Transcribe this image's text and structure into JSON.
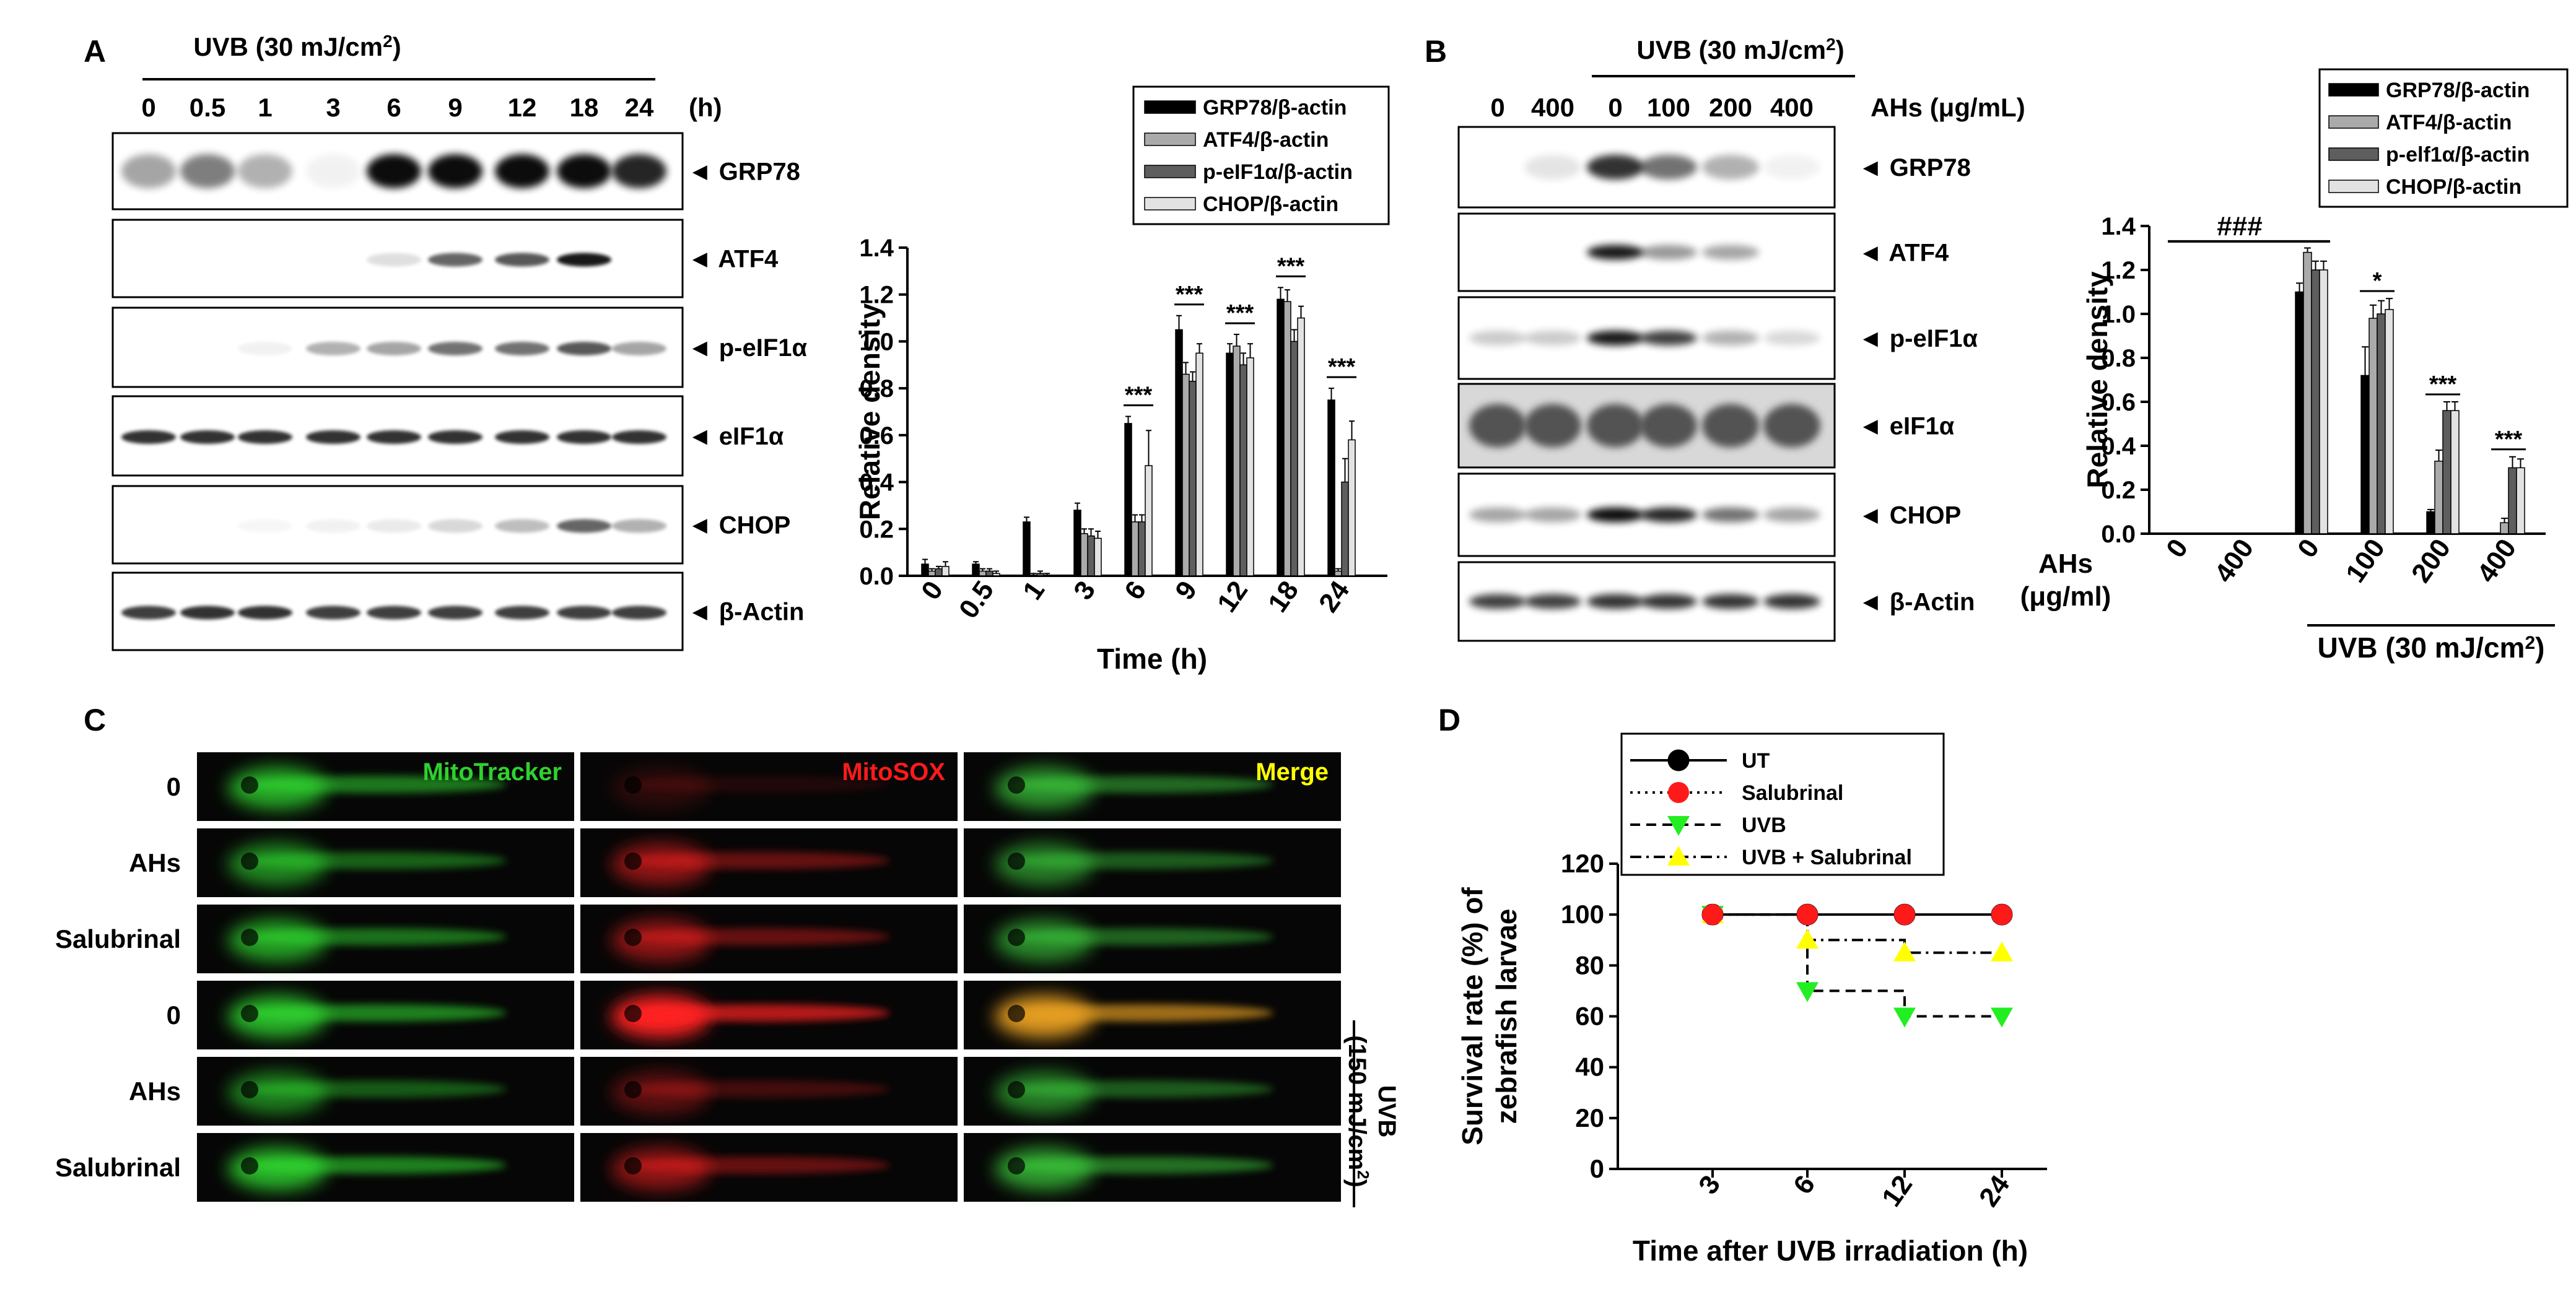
{
  "panels": {
    "A": {
      "letter": "A",
      "treatment": "UVB (30 mJ/cm",
      "treatment_sup": "2",
      "treatment_close": ")",
      "times": [
        "0",
        "0.5",
        "1",
        "3",
        "6",
        "9",
        "12",
        "18",
        "24"
      ],
      "time_unit": "(h)",
      "blots": [
        "GRP78",
        "ATF4",
        "p-eIF1α",
        "eIF1α",
        "CHOP",
        "β-Actin"
      ]
    },
    "B": {
      "letter": "B",
      "treatment": "UVB (30 mJ/cm",
      "treatment_sup": "2",
      "treatment_close": ")",
      "doses": [
        "0",
        "400",
        "0",
        "100",
        "200",
        "400"
      ],
      "dose_label": "AHs (μg/mL)",
      "blots": [
        "GRP78",
        "ATF4",
        "p-eIF1α",
        "eIF1α",
        "CHOP",
        "β-Actin"
      ]
    },
    "C": {
      "letter": "C",
      "columns": [
        "MitoTracker",
        "MitoSOX",
        "Merge"
      ],
      "column_colors": [
        "#2fd12f",
        "#ff1a1a",
        "#ffff00"
      ],
      "rows": [
        "0",
        "AHs",
        "Salubrinal",
        "0",
        "AHs",
        "Salubrinal"
      ],
      "uvb_label": "UVB",
      "uvb_dose": "(150 mJ/cm",
      "uvb_sup": "2",
      "uvb_close": ")"
    },
    "D": {
      "letter": "D"
    }
  },
  "chart_data": [
    {
      "id": "A",
      "type": "bar",
      "title": "",
      "xlabel": "Time (h)",
      "ylabel": "Relative density",
      "ylim": [
        0,
        1.4
      ],
      "yticks": [
        "0.0",
        "0.2",
        "0.4",
        "0.6",
        "0.8",
        "1.0",
        "1.2",
        "1.4"
      ],
      "categories": [
        "0",
        "0.5",
        "1",
        "3",
        "6",
        "9",
        "12",
        "18",
        "24"
      ],
      "series": [
        {
          "name": "GRP78/β-actin",
          "color": "#000000",
          "values": [
            0.05,
            0.05,
            0.23,
            0.28,
            0.65,
            1.05,
            0.95,
            1.18,
            0.75
          ],
          "errors": [
            0.02,
            0.01,
            0.02,
            0.03,
            0.03,
            0.06,
            0.04,
            0.05,
            0.05
          ]
        },
        {
          "name": "ATF4/β-actin",
          "color": "#aaaaaa",
          "values": [
            0.02,
            0.02,
            0.0,
            0.18,
            0.23,
            0.86,
            0.98,
            1.17,
            0.02
          ],
          "errors": [
            0.01,
            0.01,
            0.01,
            0.02,
            0.03,
            0.05,
            0.05,
            0.05,
            0.01
          ]
        },
        {
          "name": "p-eIF1α/β-actin",
          "color": "#5e5e5e",
          "values": [
            0.03,
            0.02,
            0.01,
            0.17,
            0.23,
            0.83,
            0.9,
            1.0,
            0.4
          ],
          "errors": [
            0.01,
            0.01,
            0.01,
            0.03,
            0.03,
            0.04,
            0.05,
            0.05,
            0.1
          ]
        },
        {
          "name": "CHOP/β-actin",
          "color": "#e2e2e2",
          "values": [
            0.04,
            0.01,
            0.0,
            0.16,
            0.47,
            0.95,
            0.93,
            1.1,
            0.58
          ],
          "errors": [
            0.02,
            0.01,
            0.01,
            0.03,
            0.15,
            0.04,
            0.06,
            0.05,
            0.08
          ]
        }
      ],
      "annotations": [
        {
          "category": "6",
          "text": "***"
        },
        {
          "category": "9",
          "text": "***"
        },
        {
          "category": "12",
          "text": "***"
        },
        {
          "category": "18",
          "text": "***"
        },
        {
          "category": "24",
          "text": "***"
        }
      ],
      "legend": "top-right"
    },
    {
      "id": "B",
      "type": "bar",
      "title": "",
      "xlabel": "",
      "ylabel": "Relative density",
      "ylim": [
        0,
        1.4
      ],
      "yticks": [
        "0.0",
        "0.2",
        "0.4",
        "0.6",
        "0.8",
        "1.0",
        "1.2",
        "1.4"
      ],
      "axis_prefix": [
        "AHs",
        "(μg/ml)"
      ],
      "categories": [
        "0",
        "400",
        "0",
        "100",
        "200",
        "400"
      ],
      "group_label": "UVB (30 mJ/cm",
      "group_sup": "2",
      "group_close": ")",
      "series": [
        {
          "name": "GRP78/β-actin",
          "color": "#000000",
          "values": [
            0.0,
            0.0,
            1.1,
            0.72,
            0.1,
            0.0
          ],
          "errors": [
            0,
            0,
            0.04,
            0.13,
            0.01,
            0
          ]
        },
        {
          "name": "ATF4/β-actin",
          "color": "#aaaaaa",
          "values": [
            0.0,
            0.0,
            1.28,
            0.98,
            0.33,
            0.05
          ],
          "errors": [
            0,
            0,
            0.02,
            0.06,
            0.05,
            0.02
          ]
        },
        {
          "name": "p-elf1α/β-actin",
          "color": "#5e5e5e",
          "values": [
            0.0,
            0.0,
            1.2,
            1.0,
            0.56,
            0.3
          ],
          "errors": [
            0,
            0,
            0.04,
            0.06,
            0.04,
            0.05
          ]
        },
        {
          "name": "CHOP/β-actin",
          "color": "#e2e2e2",
          "values": [
            0.0,
            0.0,
            1.2,
            1.02,
            0.56,
            0.3
          ],
          "errors": [
            0,
            0,
            0.04,
            0.05,
            0.04,
            0.04
          ]
        }
      ],
      "annotations": [
        {
          "category_index": 3,
          "text": "*"
        },
        {
          "category_index": 4,
          "text": "***"
        },
        {
          "category_index": 5,
          "text": "***"
        }
      ],
      "bracket": {
        "from": 0,
        "to": 2,
        "text": "###"
      },
      "legend": "top-right"
    },
    {
      "id": "D",
      "type": "line",
      "title": "",
      "xlabel": "Time after UVB irradiation (h)",
      "ylabel": [
        "Survival rate (%) of",
        "zebrafish larvae"
      ],
      "ylim": [
        0,
        120
      ],
      "yticks": [
        "0",
        "20",
        "40",
        "60",
        "80",
        "100",
        "120"
      ],
      "categories": [
        "3",
        "6",
        "12",
        "24"
      ],
      "series": [
        {
          "name": "UT",
          "color": "#000000",
          "marker": "circle",
          "values": [
            100,
            100,
            100,
            100
          ]
        },
        {
          "name": "Salubrinal",
          "color": "#ff1a1a",
          "marker": "circle",
          "values": [
            100,
            100,
            100,
            100
          ]
        },
        {
          "name": "UVB",
          "color": "#22ee22",
          "marker": "triangle-down",
          "values": [
            100,
            70,
            60,
            60
          ]
        },
        {
          "name": "UVB + Salubrinal",
          "color": "#ffff00",
          "marker": "triangle-up",
          "values": [
            100,
            90,
            85,
            85
          ]
        }
      ],
      "legend": "top-left"
    }
  ]
}
